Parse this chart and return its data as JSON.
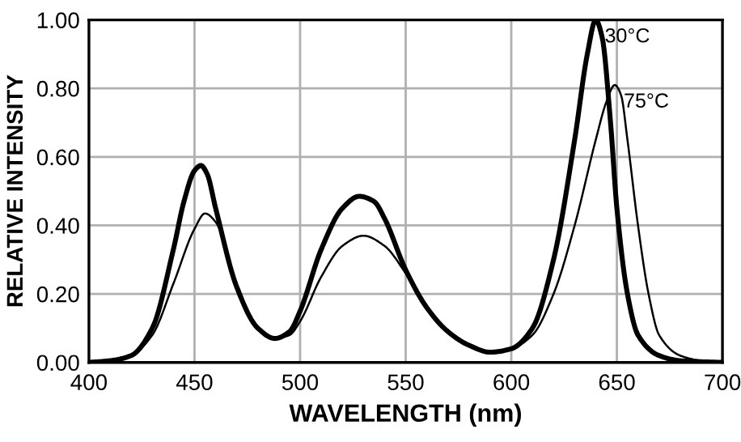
{
  "chart_data": {
    "type": "line",
    "xlabel": "WAVELENGTH (nm)",
    "ylabel": "RELATIVE INTENSITY",
    "xlim": [
      400,
      700
    ],
    "ylim": [
      0,
      1
    ],
    "xticks": [
      400,
      450,
      500,
      550,
      600,
      650,
      700
    ],
    "yticks": [
      {
        "value": 0,
        "label": "0.00"
      },
      {
        "value": 0.2,
        "label": "0.20"
      },
      {
        "value": 0.4,
        "label": "0.40"
      },
      {
        "value": 0.6,
        "label": "0.60"
      },
      {
        "value": 0.8,
        "label": "0.80"
      },
      {
        "value": 1.0,
        "label": "1.00"
      }
    ],
    "grid": true,
    "marker": "none",
    "line_style": "solid",
    "series": [
      {
        "name": "30°C",
        "color": "#000000",
        "x": [
          400,
          410,
          420,
          430,
          440,
          445,
          450,
          453,
          456,
          460,
          470,
          480,
          488,
          495,
          500,
          510,
          520,
          528,
          535,
          540,
          550,
          560,
          570,
          580,
          590,
          600,
          610,
          620,
          630,
          636,
          640,
          643,
          647,
          650,
          655,
          660,
          670,
          680,
          700
        ],
        "values": [
          0,
          0.005,
          0.02,
          0.1,
          0.33,
          0.47,
          0.56,
          0.575,
          0.55,
          0.45,
          0.22,
          0.1,
          0.07,
          0.09,
          0.15,
          0.33,
          0.45,
          0.485,
          0.47,
          0.42,
          0.27,
          0.16,
          0.09,
          0.05,
          0.03,
          0.04,
          0.1,
          0.3,
          0.65,
          0.9,
          1.0,
          0.95,
          0.7,
          0.45,
          0.2,
          0.08,
          0.02,
          0.005,
          0
        ]
      },
      {
        "name": "75°C",
        "color": "#000000",
        "x": [
          400,
          410,
          420,
          430,
          440,
          450,
          455,
          460,
          470,
          480,
          488,
          495,
          500,
          510,
          520,
          530,
          540,
          550,
          560,
          570,
          580,
          590,
          600,
          610,
          620,
          630,
          640,
          645,
          649,
          652,
          655,
          660,
          665,
          670,
          680,
          690,
          700
        ],
        "values": [
          0,
          0.005,
          0.02,
          0.08,
          0.23,
          0.39,
          0.435,
          0.41,
          0.23,
          0.1,
          0.07,
          0.08,
          0.12,
          0.25,
          0.34,
          0.37,
          0.34,
          0.26,
          0.16,
          0.09,
          0.05,
          0.03,
          0.04,
          0.08,
          0.2,
          0.4,
          0.65,
          0.76,
          0.81,
          0.78,
          0.65,
          0.4,
          0.2,
          0.08,
          0.02,
          0.005,
          0
        ]
      }
    ]
  }
}
